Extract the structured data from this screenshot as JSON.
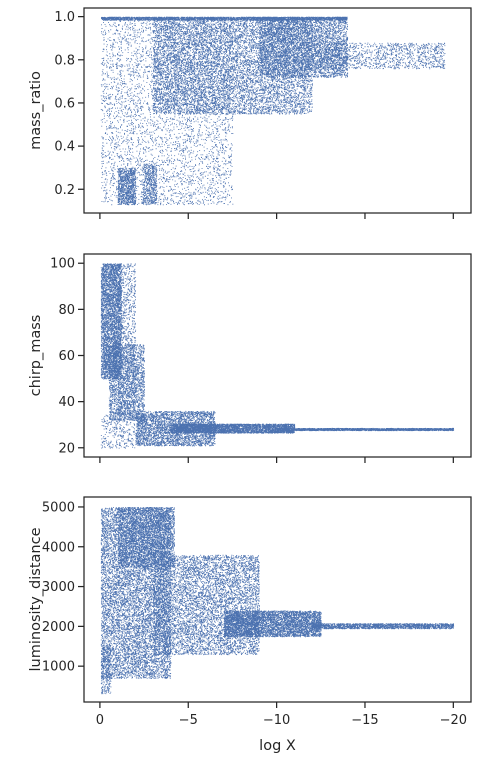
{
  "chart_data": [
    {
      "type": "scatter",
      "ylabel": "mass_ratio",
      "xlim": [
        0.9,
        -21.0
      ],
      "ylim": [
        0.09,
        1.04
      ],
      "xticks": [
        0,
        -5,
        -10,
        -15,
        -20
      ],
      "yticks": [
        0.2,
        0.4,
        0.6,
        0.8,
        1.0
      ],
      "ytick_labels": [
        "0.2",
        "0.4",
        "0.6",
        "0.8",
        "1.0"
      ],
      "x_tick_labels_visible": false,
      "color": "#4c72b0",
      "density_regions": [
        {
          "x0": -0.05,
          "x1": -7.5,
          "y0": 0.13,
          "y1": 1.0,
          "n": 4200,
          "weight": "uniform"
        },
        {
          "x0": -1.0,
          "x1": -2.0,
          "y0": 0.13,
          "y1": 0.3,
          "n": 900,
          "weight": "uniform"
        },
        {
          "x0": -2.4,
          "x1": -3.2,
          "y0": 0.13,
          "y1": 0.32,
          "n": 500,
          "weight": "uniform"
        },
        {
          "x0": -3.0,
          "x1": -12.0,
          "y0": 0.55,
          "y1": 1.0,
          "n": 9000,
          "weight": "uniform"
        },
        {
          "x0": -9.0,
          "x1": -14.0,
          "y0": 0.72,
          "y1": 1.0,
          "n": 4200,
          "weight": "uniform"
        },
        {
          "x0": -12.0,
          "x1": -19.5,
          "y0": 0.76,
          "y1": 0.88,
          "n": 1300,
          "weight": "uniform"
        },
        {
          "x0": -0.05,
          "x1": -14.0,
          "y0": 0.985,
          "y1": 1.0,
          "n": 2400,
          "weight": "uniform"
        }
      ]
    },
    {
      "type": "scatter",
      "ylabel": "chirp_mass",
      "xlim": [
        0.9,
        -21.0
      ],
      "ylim": [
        16.0,
        104.0
      ],
      "xticks": [
        0,
        -5,
        -10,
        -15,
        -20
      ],
      "yticks": [
        20,
        40,
        60,
        80,
        100
      ],
      "ytick_labels": [
        "20",
        "40",
        "60",
        "80",
        "100"
      ],
      "x_tick_labels_visible": false,
      "color": "#4c72b0",
      "density_regions": [
        {
          "x0": -0.05,
          "x1": -1.2,
          "y0": 50.0,
          "y1": 100.0,
          "n": 3800,
          "weight": "uniform"
        },
        {
          "x0": -1.0,
          "x1": -2.0,
          "y0": 35.0,
          "y1": 100.0,
          "n": 900,
          "weight": "uniform"
        },
        {
          "x0": -0.5,
          "x1": -2.5,
          "y0": 32.0,
          "y1": 65.0,
          "n": 2200,
          "weight": "uniform"
        },
        {
          "x0": -2.0,
          "x1": -6.5,
          "y0": 21.0,
          "y1": 36.0,
          "n": 3200,
          "weight": "uniform"
        },
        {
          "x0": -4.0,
          "x1": -11.0,
          "y0": 26.5,
          "y1": 30.5,
          "n": 3600,
          "weight": "uniform"
        },
        {
          "x0": -10.0,
          "x1": -20.0,
          "y0": 27.6,
          "y1": 28.6,
          "n": 2200,
          "weight": "uniform"
        },
        {
          "x0": -0.05,
          "x1": -2.0,
          "y0": 20.0,
          "y1": 35.0,
          "n": 300,
          "weight": "uniform"
        }
      ]
    },
    {
      "type": "scatter",
      "ylabel": "luminosity_distance",
      "xlabel": "log X",
      "xlim": [
        0.9,
        -21.0
      ],
      "ylim": [
        100.0,
        5250.0
      ],
      "xticks": [
        0,
        -5,
        -10,
        -15,
        -20
      ],
      "xtick_labels": [
        "0",
        "−5",
        "−10",
        "−15",
        "−20"
      ],
      "yticks": [
        1000,
        2000,
        3000,
        4000,
        5000
      ],
      "ytick_labels": [
        "1000",
        "2000",
        "3000",
        "4000",
        "5000"
      ],
      "x_tick_labels_visible": true,
      "color": "#4c72b0",
      "density_regions": [
        {
          "x0": -0.05,
          "x1": -4.0,
          "y0": 700.0,
          "y1": 5000.0,
          "n": 9000,
          "weight": "uniform"
        },
        {
          "x0": -1.0,
          "x1": -4.2,
          "y0": 3500.0,
          "y1": 5000.0,
          "n": 3000,
          "weight": "uniform"
        },
        {
          "x0": -3.0,
          "x1": -9.0,
          "y0": 1300.0,
          "y1": 3800.0,
          "n": 6500,
          "weight": "uniform"
        },
        {
          "x0": -7.0,
          "x1": -12.5,
          "y0": 1750.0,
          "y1": 2400.0,
          "n": 4500,
          "weight": "uniform"
        },
        {
          "x0": -12.0,
          "x1": -20.0,
          "y0": 1950.0,
          "y1": 2080.0,
          "n": 1800,
          "weight": "uniform"
        },
        {
          "x0": -0.05,
          "x1": -0.6,
          "y0": 300.0,
          "y1": 1500.0,
          "n": 250,
          "weight": "uniform"
        }
      ]
    }
  ]
}
